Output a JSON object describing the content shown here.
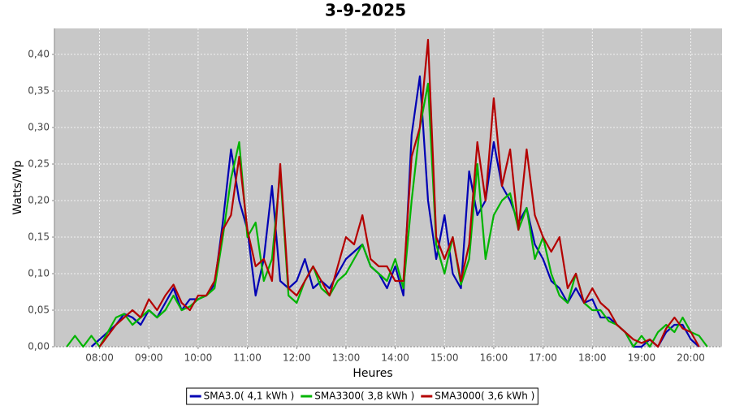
{
  "chart_data": {
    "type": "line",
    "title": "3-9-2025",
    "x_label": "Heures",
    "y_label": "Watts/Wp",
    "x": [
      "07:20",
      "07:30",
      "07:40",
      "07:50",
      "08:00",
      "08:10",
      "08:20",
      "08:30",
      "08:40",
      "08:50",
      "09:00",
      "09:10",
      "09:20",
      "09:30",
      "09:40",
      "09:50",
      "10:00",
      "10:10",
      "10:20",
      "10:30",
      "10:40",
      "10:50",
      "11:00",
      "11:10",
      "11:20",
      "11:30",
      "11:40",
      "11:50",
      "12:00",
      "12:10",
      "12:20",
      "12:30",
      "12:40",
      "12:50",
      "13:00",
      "13:10",
      "13:20",
      "13:30",
      "13:40",
      "13:50",
      "14:00",
      "14:10",
      "14:20",
      "14:30",
      "14:40",
      "14:50",
      "15:00",
      "15:10",
      "15:20",
      "15:30",
      "15:40",
      "15:50",
      "16:00",
      "16:10",
      "16:20",
      "16:30",
      "16:40",
      "16:50",
      "17:00",
      "17:10",
      "17:20",
      "17:30",
      "17:40",
      "17:50",
      "18:00",
      "18:10",
      "18:20",
      "18:30",
      "18:40",
      "18:50",
      "19:00",
      "19:10",
      "19:20",
      "19:30",
      "19:40",
      "19:50",
      "20:00",
      "20:10",
      "20:20"
    ],
    "series": [
      {
        "name": "SMA3.0( 4,1 kWh )",
        "color": "#0000b4",
        "values": [
          null,
          null,
          null,
          0,
          0.01,
          0.02,
          0.03,
          0.045,
          0.04,
          0.03,
          0.05,
          0.04,
          0.06,
          0.08,
          0.05,
          0.065,
          0.065,
          0.07,
          0.085,
          0.17,
          0.27,
          0.2,
          0.16,
          0.07,
          0.12,
          0.22,
          0.09,
          0.08,
          0.09,
          0.12,
          0.08,
          0.09,
          0.08,
          0.1,
          0.12,
          0.13,
          0.14,
          0.11,
          0.1,
          0.08,
          0.11,
          0.07,
          0.29,
          0.37,
          0.2,
          0.12,
          0.18,
          0.1,
          0.08,
          0.24,
          0.18,
          0.2,
          0.28,
          0.22,
          0.2,
          0.17,
          0.19,
          0.14,
          0.12,
          0.09,
          0.08,
          0.06,
          0.08,
          0.06,
          0.065,
          0.04,
          0.04,
          0.03,
          0.02,
          0,
          0,
          0.01,
          0,
          0.02,
          0.03,
          0.03,
          0.01,
          0,
          null
        ]
      },
      {
        "name": "SMA3300( 3,8 kWh )",
        "color": "#00b400",
        "values": [
          0,
          0.015,
          0,
          0.015,
          0,
          0.02,
          0.04,
          0.045,
          0.03,
          0.04,
          0.05,
          0.04,
          0.05,
          0.07,
          0.05,
          0.055,
          0.065,
          0.07,
          0.08,
          0.15,
          0.23,
          0.28,
          0.15,
          0.17,
          0.09,
          0.12,
          0.24,
          0.07,
          0.06,
          0.09,
          0.11,
          0.08,
          0.07,
          0.09,
          0.1,
          0.12,
          0.14,
          0.11,
          0.1,
          0.09,
          0.12,
          0.08,
          0.2,
          0.3,
          0.36,
          0.14,
          0.1,
          0.15,
          0.085,
          0.12,
          0.25,
          0.12,
          0.18,
          0.2,
          0.21,
          0.16,
          0.19,
          0.12,
          0.15,
          0.1,
          0.07,
          0.06,
          0.1,
          0.06,
          0.05,
          0.05,
          0.035,
          0.03,
          0.02,
          0,
          0.015,
          0,
          0.02,
          0.03,
          0.02,
          0.04,
          0.02,
          0.015,
          0
        ]
      },
      {
        "name": "SMA3000( 3,6 kWh )",
        "color": "#b40000",
        "values": [
          null,
          null,
          null,
          null,
          0,
          0.015,
          0.03,
          0.04,
          0.05,
          0.04,
          0.065,
          0.05,
          0.07,
          0.085,
          0.06,
          0.05,
          0.07,
          0.07,
          0.09,
          0.16,
          0.18,
          0.26,
          0.16,
          0.11,
          0.12,
          0.09,
          0.25,
          0.08,
          0.07,
          0.09,
          0.11,
          0.09,
          0.07,
          0.11,
          0.15,
          0.14,
          0.18,
          0.12,
          0.11,
          0.11,
          0.09,
          0.09,
          0.26,
          0.3,
          0.42,
          0.15,
          0.12,
          0.15,
          0.09,
          0.14,
          0.28,
          0.2,
          0.34,
          0.22,
          0.27,
          0.16,
          0.27,
          0.18,
          0.15,
          0.13,
          0.15,
          0.08,
          0.1,
          0.06,
          0.08,
          0.06,
          0.05,
          0.03,
          0.02,
          0.01,
          0.005,
          0.01,
          0,
          0.025,
          0.04,
          0.025,
          0.02,
          0,
          null
        ]
      }
    ],
    "xlim": [
      "07:05",
      "20:38"
    ],
    "xticks": [
      "08:00",
      "09:00",
      "10:00",
      "11:00",
      "12:00",
      "13:00",
      "14:00",
      "15:00",
      "16:00",
      "17:00",
      "18:00",
      "19:00",
      "20:00"
    ],
    "ylim": [
      0,
      0.4356
    ],
    "yticks": [
      {
        "value": 0,
        "label": "0,00"
      },
      {
        "value": 0.05,
        "label": "0,05"
      },
      {
        "value": 0.1,
        "label": "0,10"
      },
      {
        "value": 0.15,
        "label": "0,15"
      },
      {
        "value": 0.2,
        "label": "0,20"
      },
      {
        "value": 0.25,
        "label": "0,25"
      },
      {
        "value": 0.3,
        "label": "0,30"
      },
      {
        "value": 0.35,
        "label": "0,35"
      },
      {
        "value": 0.4,
        "label": "0,40"
      }
    ],
    "grid": true,
    "legend": "bottom"
  }
}
